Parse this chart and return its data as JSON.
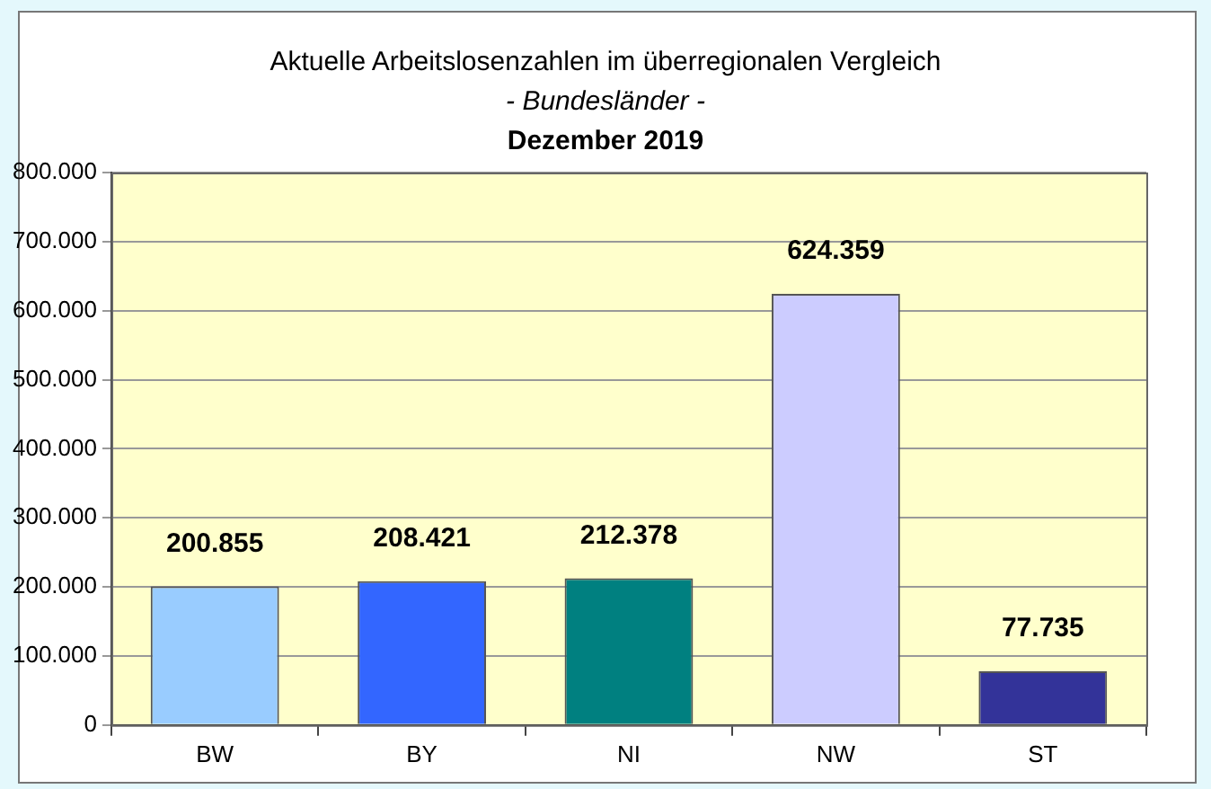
{
  "chart_data": {
    "type": "bar",
    "title": "Aktuelle Arbeitslosenzahlen im überregionalen Vergleich",
    "subtitle": "- Bundesländer -",
    "annotations": [
      "Dezember 2019"
    ],
    "categories": [
      "BW",
      "BY",
      "NI",
      "NW",
      "ST"
    ],
    "values": [
      200855,
      208421,
      212378,
      624359,
      77735
    ],
    "colors": [
      "#99ccff",
      "#3366ff",
      "#008080",
      "#ccccff",
      "#333399"
    ],
    "value_labels": [
      "200.855",
      "208.421",
      "212.378",
      "624.359",
      "77.735"
    ],
    "ylim": [
      0,
      800000
    ],
    "yticks": [
      0,
      {
        "value": 100000,
        "label": "100.000"
      },
      {
        "value": 200000,
        "label": "200.000"
      },
      {
        "value": 300000,
        "label": "300.000"
      },
      {
        "value": 400000,
        "label": "400.000"
      },
      {
        "value": 500000,
        "label": "500.000"
      },
      {
        "value": 600000,
        "label": "600.000"
      },
      {
        "value": 700000,
        "label": "700.000"
      },
      {
        "value": 800000,
        "label": "800.000"
      }
    ],
    "grid": "y",
    "legend": false
  }
}
